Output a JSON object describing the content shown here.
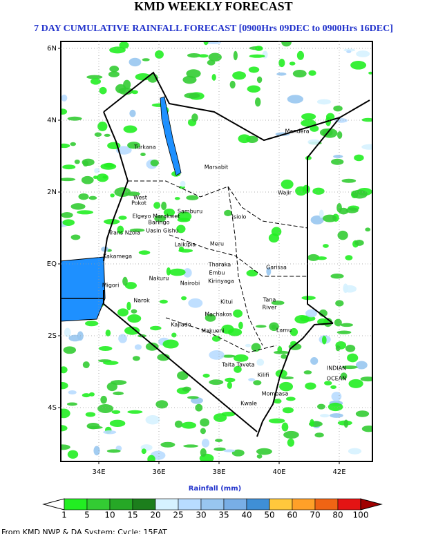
{
  "header": {
    "title": "KMD WEEKLY FORECAST",
    "subtitle": "7 DAY CUMULATIVE RAINFALL FORECAST [0900Hrs 09DEC to 0900Hrs 16DEC]"
  },
  "map": {
    "lat_ticks": [
      "6N",
      "4N",
      "2N",
      "EQ",
      "2S",
      "4S"
    ],
    "lon_ticks": [
      "34E",
      "36E",
      "38E",
      "40E",
      "42E"
    ],
    "places": [
      "Turkana",
      "Marsabit",
      "Mandera",
      "Wajir",
      "Samburu",
      "Isiolo",
      "West",
      "Pokot",
      "Elgeyo Marakwet",
      "Baringo",
      "Uasin Gishu",
      "Laikipia",
      "Meru",
      "Garissa",
      "Tharaka",
      "Embu",
      "Kirinyaga",
      "Nakuru",
      "Narok",
      "Kitui",
      "Tana",
      "River",
      "Machakos",
      "Kajiado",
      "Makueni",
      "Lamu",
      "Taita Taveta",
      "Kilifi",
      "Mombasa",
      "Kwale",
      "Nairobi",
      "Trans Nzoia",
      "Kakamega",
      "Migori"
    ],
    "ocean_label": [
      "INDIAN",
      "OCEAN"
    ]
  },
  "colorbar": {
    "label": "Rainfall (mm)",
    "levels": [
      1,
      5,
      10,
      15,
      20,
      25,
      30,
      35,
      40,
      50,
      60,
      70,
      80,
      100
    ],
    "colors": [
      "#ffffff",
      "#22ee22",
      "#33cc33",
      "#26a826",
      "#1c7e1c",
      "#d6f2ff",
      "#b8dcff",
      "#98c6f0",
      "#78aee6",
      "#3f8fd6",
      "#ffc83c",
      "#ffa028",
      "#f06414",
      "#e41414",
      "#a00000"
    ]
  },
  "footer": "From KMD NWP & DA System: Cycle: 15EAT"
}
